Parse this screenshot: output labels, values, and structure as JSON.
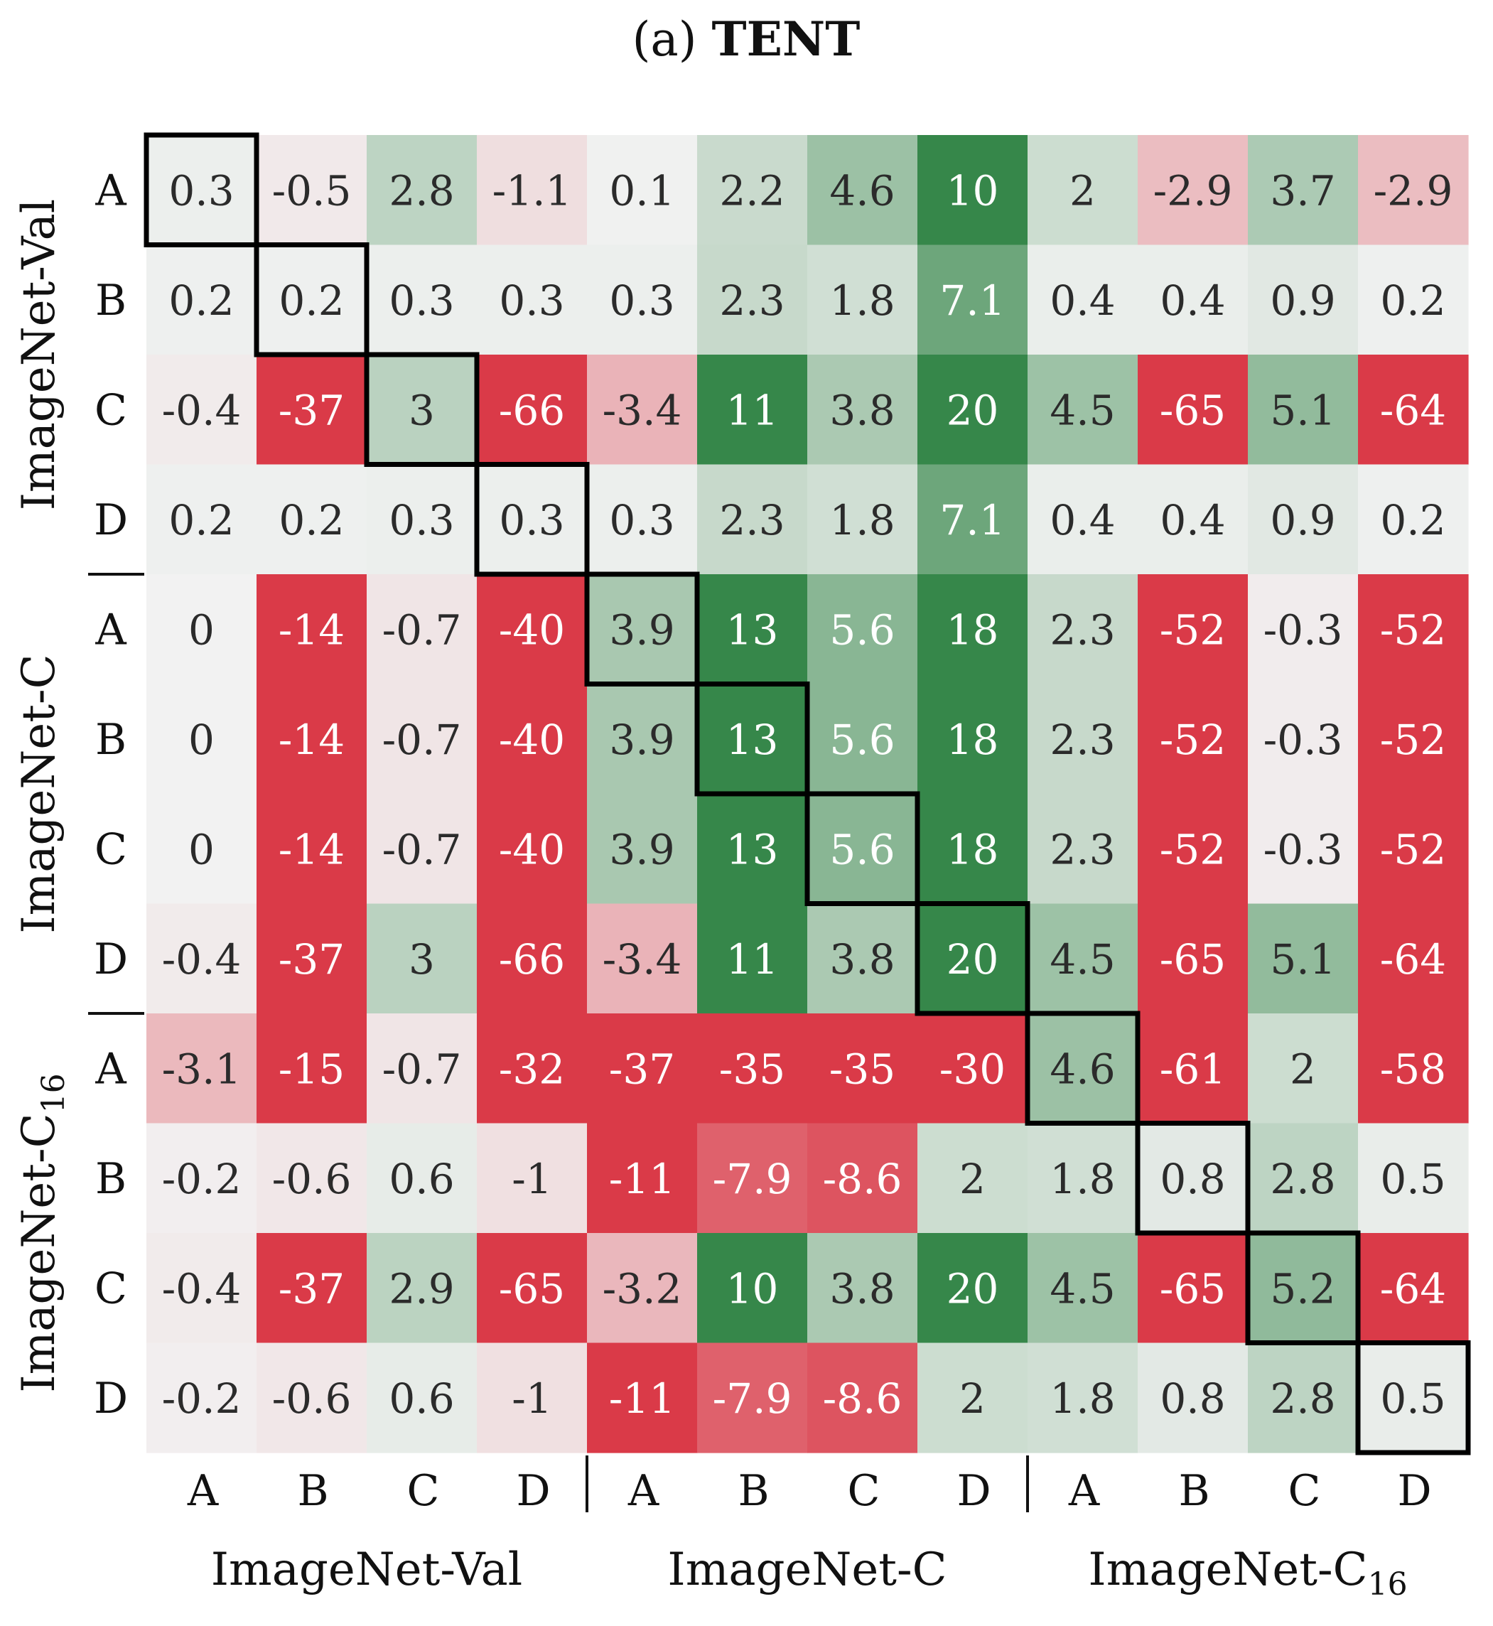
{
  "chart_data": {
    "type": "heatmap",
    "title_prefix": "(a) ",
    "title_bold": "TENT",
    "colors": {
      "positive": "#36874a",
      "negative": "#da3a48",
      "neutral": "#f2f2f2"
    },
    "color_scale_cap": 10,
    "row_groups": [
      {
        "label": "ImageNet-Val",
        "sub": ""
      },
      {
        "label": "ImageNet-C",
        "sub": ""
      },
      {
        "label": "ImageNet-C",
        "sub": "16"
      }
    ],
    "col_groups": [
      {
        "label": "ImageNet-Val",
        "sub": ""
      },
      {
        "label": "ImageNet-C",
        "sub": ""
      },
      {
        "label": "ImageNet-C",
        "sub": "16"
      }
    ],
    "row_labels": [
      "A",
      "B",
      "C",
      "D",
      "A",
      "B",
      "C",
      "D",
      "A",
      "B",
      "C",
      "D"
    ],
    "col_labels": [
      "A",
      "B",
      "C",
      "D",
      "A",
      "B",
      "C",
      "D",
      "A",
      "B",
      "C",
      "D"
    ],
    "values": [
      [
        "0.3",
        "-0.5",
        "2.8",
        "-1.1",
        "0.1",
        "2.2",
        "4.6",
        "10",
        "2",
        "-2.9",
        "3.7",
        "-2.9"
      ],
      [
        "0.2",
        "0.2",
        "0.3",
        "0.3",
        "0.3",
        "2.3",
        "1.8",
        "7.1",
        "0.4",
        "0.4",
        "0.9",
        "0.2"
      ],
      [
        "-0.4",
        "-37",
        "3",
        "-66",
        "-3.4",
        "11",
        "3.8",
        "20",
        "4.5",
        "-65",
        "5.1",
        "-64"
      ],
      [
        "0.2",
        "0.2",
        "0.3",
        "0.3",
        "0.3",
        "2.3",
        "1.8",
        "7.1",
        "0.4",
        "0.4",
        "0.9",
        "0.2"
      ],
      [
        "0",
        "-14",
        "-0.7",
        "-40",
        "3.9",
        "13",
        "5.6",
        "18",
        "2.3",
        "-52",
        "-0.3",
        "-52"
      ],
      [
        "0",
        "-14",
        "-0.7",
        "-40",
        "3.9",
        "13",
        "5.6",
        "18",
        "2.3",
        "-52",
        "-0.3",
        "-52"
      ],
      [
        "0",
        "-14",
        "-0.7",
        "-40",
        "3.9",
        "13",
        "5.6",
        "18",
        "2.3",
        "-52",
        "-0.3",
        "-52"
      ],
      [
        "-0.4",
        "-37",
        "3",
        "-66",
        "-3.4",
        "11",
        "3.8",
        "20",
        "4.5",
        "-65",
        "5.1",
        "-64"
      ],
      [
        "-3.1",
        "-15",
        "-0.7",
        "-32",
        "-37",
        "-35",
        "-35",
        "-30",
        "4.6",
        "-61",
        "2",
        "-58"
      ],
      [
        "-0.2",
        "-0.6",
        "0.6",
        "-1",
        "-11",
        "-7.9",
        "-8.6",
        "2",
        "1.8",
        "0.8",
        "2.8",
        "0.5"
      ],
      [
        "-0.4",
        "-37",
        "2.9",
        "-65",
        "-3.2",
        "10",
        "3.8",
        "20",
        "4.5",
        "-65",
        "5.2",
        "-64"
      ],
      [
        "-0.2",
        "-0.6",
        "0.6",
        "-1",
        "-11",
        "-7.9",
        "-8.6",
        "2",
        "1.8",
        "0.8",
        "2.8",
        "0.5"
      ]
    ],
    "highlight": "diagonal"
  }
}
